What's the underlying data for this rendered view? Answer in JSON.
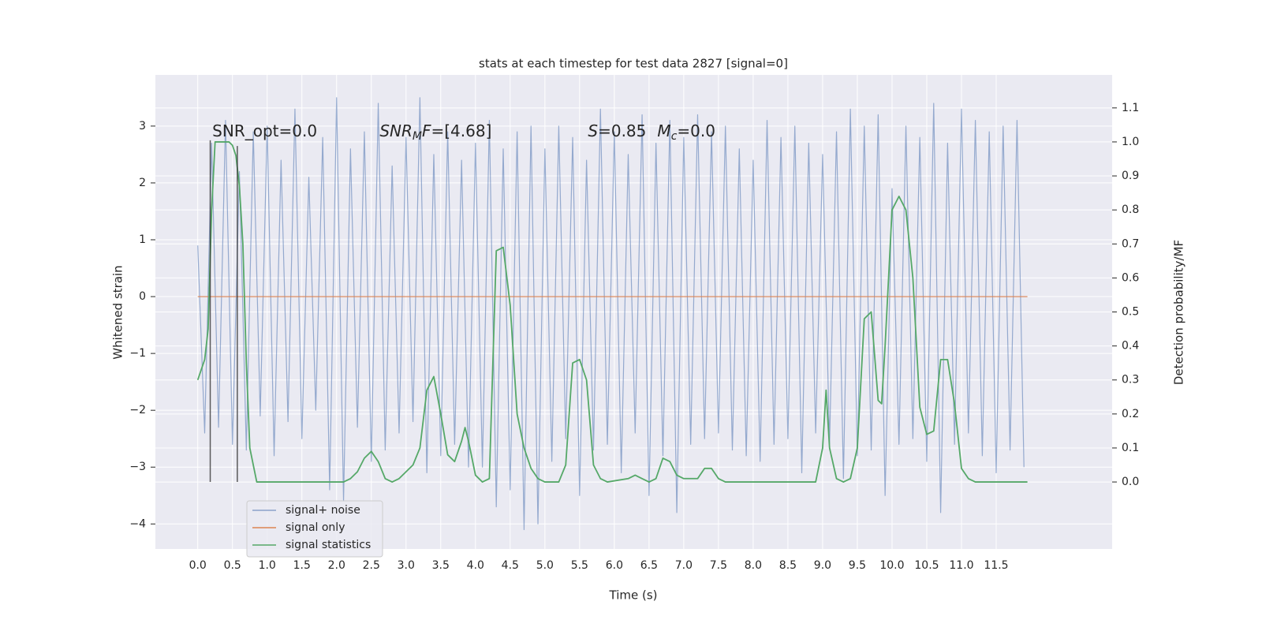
{
  "chart_data": {
    "type": "line",
    "title": "stats at each timestep for test data 2827 [signal=0]",
    "xlabel": "Time (s)",
    "ylabel": "Whitened strain",
    "y2label": "Detection probability/MF",
    "xlim": [
      -0.61,
      13.17
    ],
    "ylim": [
      -4.44,
      3.9
    ],
    "y2lim": [
      -0.197,
      1.197
    ],
    "xticks": [
      {
        "value": 0,
        "label": "0.0"
      },
      {
        "value": 0.5,
        "label": "0.5"
      },
      {
        "value": 1,
        "label": "1.0"
      },
      {
        "value": 1.5,
        "label": "1.5"
      },
      {
        "value": 2,
        "label": "2.0"
      },
      {
        "value": 2.5,
        "label": "2.5"
      },
      {
        "value": 3,
        "label": "3.0"
      },
      {
        "value": 3.5,
        "label": "3.5"
      },
      {
        "value": 4,
        "label": "4.0"
      },
      {
        "value": 4.5,
        "label": "4.5"
      },
      {
        "value": 5,
        "label": "5.0"
      },
      {
        "value": 5.5,
        "label": "5.5"
      },
      {
        "value": 6,
        "label": "6.0"
      },
      {
        "value": 6.5,
        "label": "6.5"
      },
      {
        "value": 7,
        "label": "7.0"
      },
      {
        "value": 7.5,
        "label": "7.5"
      },
      {
        "value": 8,
        "label": "8.0"
      },
      {
        "value": 8.5,
        "label": "8.5"
      },
      {
        "value": 9,
        "label": "9.0"
      },
      {
        "value": 9.5,
        "label": "9.5"
      },
      {
        "value": 10,
        "label": "10.0"
      },
      {
        "value": 10.5,
        "label": "10.5"
      },
      {
        "value": 11,
        "label": "11.0"
      },
      {
        "value": 11.5,
        "label": "11.5"
      }
    ],
    "yticks": [
      {
        "value": -4,
        "label": "−4"
      },
      {
        "value": -3,
        "label": "−3"
      },
      {
        "value": -2,
        "label": "−2"
      },
      {
        "value": -1,
        "label": "−1"
      },
      0,
      1,
      2,
      3
    ],
    "y2ticks": [
      {
        "value": 0,
        "label": "0.0"
      },
      0.1,
      0.2,
      0.3,
      0.4,
      0.5,
      0.6,
      0.7,
      0.8,
      0.9,
      {
        "value": 1,
        "label": "1.0"
      },
      1.1
    ],
    "grid": true,
    "series": [
      {
        "name": "signal+ noise",
        "color": "#4c72b0",
        "x": [
          0,
          0.1,
          0.2,
          0.3,
          0.4,
          0.5,
          0.6,
          0.7,
          0.8,
          0.9,
          1,
          1.1,
          1.2,
          1.3,
          1.4,
          1.5,
          1.6,
          1.7,
          1.8,
          1.9,
          2,
          2.1,
          2.2,
          2.3,
          2.4,
          2.5,
          2.6,
          2.7,
          2.8,
          2.9,
          3,
          3.1,
          3.2,
          3.3,
          3.4,
          3.5,
          3.6,
          3.7,
          3.8,
          3.9,
          4,
          4.1,
          4.2,
          4.3,
          4.4,
          4.5,
          4.6,
          4.7,
          4.8,
          4.9,
          5,
          5.1,
          5.2,
          5.3,
          5.4,
          5.5,
          5.6,
          5.7,
          5.8,
          5.9,
          6,
          6.1,
          6.2,
          6.3,
          6.4,
          6.5,
          6.6,
          6.7,
          6.8,
          6.9,
          7,
          7.1,
          7.2,
          7.3,
          7.4,
          7.5,
          7.6,
          7.7,
          7.8,
          7.9,
          8,
          8.1,
          8.2,
          8.3,
          8.4,
          8.5,
          8.6,
          8.7,
          8.8,
          8.9,
          9,
          9.1,
          9.2,
          9.3,
          9.4,
          9.5,
          9.6,
          9.7,
          9.8,
          9.9,
          10,
          10.1,
          10.2,
          10.3,
          10.4,
          10.5,
          10.6,
          10.7,
          10.8,
          10.9,
          11,
          11.1,
          11.2,
          11.3,
          11.4,
          11.5,
          11.6,
          11.7,
          11.8,
          11.9
        ],
        "values": [
          0.9,
          -2.4,
          2.7,
          -2.3,
          3.1,
          -2.6,
          2.2,
          -2.7,
          2.9,
          -2.1,
          3.0,
          -2.8,
          2.4,
          -2.2,
          3.3,
          -2.5,
          2.1,
          -2.0,
          2.8,
          -3.4,
          3.5,
          -3.6,
          2.6,
          -2.3,
          2.9,
          -2.9,
          3.4,
          -2.7,
          2.3,
          -2.4,
          2.8,
          -2.2,
          3.5,
          -3.1,
          2.5,
          -2.8,
          2.9,
          -2.6,
          2.4,
          -3.0,
          2.7,
          -3.0,
          3.1,
          -3.7,
          2.6,
          -3.4,
          2.9,
          -4.1,
          3.0,
          -4.0,
          2.6,
          -2.9,
          3.0,
          -2.5,
          2.8,
          -3.5,
          2.4,
          -2.7,
          3.3,
          -2.6,
          2.9,
          -3.1,
          2.5,
          -2.4,
          3.2,
          -3.5,
          2.7,
          -2.8,
          3.1,
          -3.8,
          2.8,
          -2.6,
          3.2,
          -2.5,
          2.9,
          -2.4,
          3.0,
          -2.7,
          2.6,
          -2.8,
          2.4,
          -2.9,
          3.1,
          -2.6,
          2.8,
          -2.5,
          3.0,
          -3.1,
          2.7,
          -2.4,
          2.5,
          -2.6,
          2.9,
          -3.2,
          3.3,
          -2.8,
          3.0,
          -2.7,
          3.2,
          -3.5,
          1.9,
          -2.6,
          3.0,
          -2.5,
          2.8,
          -2.9,
          3.4,
          -3.8,
          2.7,
          -2.6,
          3.3,
          -2.4,
          3.1,
          -2.8,
          2.9,
          -3.1,
          3.0,
          -2.7,
          3.1,
          -3.0
        ]
      },
      {
        "name": "signal only",
        "color": "#dd8452",
        "x": [
          0,
          11.95
        ],
        "values": [
          0,
          0
        ]
      },
      {
        "name": "signal statistics",
        "color": "#55a868",
        "axis": "y2",
        "x": [
          0,
          0.1,
          0.15,
          0.2,
          0.25,
          0.3,
          0.45,
          0.5,
          0.55,
          0.6,
          0.65,
          0.7,
          0.75,
          0.8,
          0.85,
          2.0,
          2.1,
          2.2,
          2.3,
          2.4,
          2.5,
          2.6,
          2.7,
          2.8,
          2.9,
          3.0,
          3.1,
          3.2,
          3.3,
          3.4,
          3.5,
          3.6,
          3.7,
          3.8,
          3.85,
          3.9,
          4.0,
          4.1,
          4.2,
          4.3,
          4.4,
          4.5,
          4.6,
          4.7,
          4.8,
          4.9,
          5.0,
          5.2,
          5.3,
          5.4,
          5.5,
          5.6,
          5.7,
          5.8,
          5.9,
          6.2,
          6.3,
          6.4,
          6.5,
          6.6,
          6.7,
          6.8,
          6.9,
          7.0,
          7.2,
          7.3,
          7.4,
          7.5,
          7.6,
          8.9,
          9.0,
          9.05,
          9.1,
          9.2,
          9.3,
          9.4,
          9.5,
          9.6,
          9.7,
          9.8,
          9.85,
          9.9,
          10.0,
          10.1,
          10.2,
          10.3,
          10.4,
          10.5,
          10.6,
          10.7,
          10.8,
          10.9,
          11.0,
          11.1,
          11.2,
          11.95
        ],
        "values": [
          0.3,
          0.36,
          0.45,
          0.8,
          1.0,
          1.0,
          1.0,
          0.99,
          0.96,
          0.87,
          0.7,
          0.35,
          0.1,
          0.05,
          0.0,
          0.0,
          0.0,
          0.01,
          0.03,
          0.07,
          0.09,
          0.06,
          0.01,
          0.0,
          0.01,
          0.03,
          0.05,
          0.1,
          0.27,
          0.31,
          0.2,
          0.08,
          0.06,
          0.12,
          0.16,
          0.12,
          0.02,
          0.0,
          0.01,
          0.68,
          0.69,
          0.52,
          0.2,
          0.1,
          0.04,
          0.01,
          0.0,
          0.0,
          0.05,
          0.35,
          0.36,
          0.3,
          0.05,
          0.01,
          0.0,
          0.01,
          0.02,
          0.01,
          0.0,
          0.01,
          0.07,
          0.06,
          0.02,
          0.01,
          0.01,
          0.04,
          0.04,
          0.01,
          0.0,
          0.0,
          0.1,
          0.27,
          0.1,
          0.01,
          0.0,
          0.01,
          0.1,
          0.48,
          0.5,
          0.24,
          0.23,
          0.4,
          0.8,
          0.84,
          0.8,
          0.6,
          0.22,
          0.14,
          0.15,
          0.36,
          0.36,
          0.23,
          0.04,
          0.01,
          0.0,
          0.0
        ]
      }
    ],
    "vlines": [
      {
        "x": 0.18,
        "ymin": -3.26,
        "ymax": 2.75,
        "color": "#333333"
      },
      {
        "x": 0.57,
        "ymin": -3.26,
        "ymax": 2.65,
        "color": "#333333"
      }
    ],
    "annotations": [
      {
        "x": 0.21,
        "y": 2.82,
        "parts": [
          {
            "text": "SNR_opt=0.0"
          }
        ]
      },
      {
        "x": 2.62,
        "y": 2.82,
        "parts": [
          {
            "text": "SNR",
            "italic": true
          },
          {
            "text": "M",
            "italic": true,
            "sub": true
          },
          {
            "text": "F",
            "italic": true
          },
          {
            "text": "=[4.68]"
          }
        ]
      },
      {
        "x": 5.62,
        "y": 2.82,
        "parts": [
          {
            "text": "S",
            "italic": true
          },
          {
            "text": "=0.85"
          }
        ]
      },
      {
        "x": 6.62,
        "y": 2.82,
        "parts": [
          {
            "text": "M",
            "italic": true
          },
          {
            "text": "c",
            "italic": true,
            "sub": true
          },
          {
            "text": "=0.0"
          }
        ]
      }
    ]
  }
}
